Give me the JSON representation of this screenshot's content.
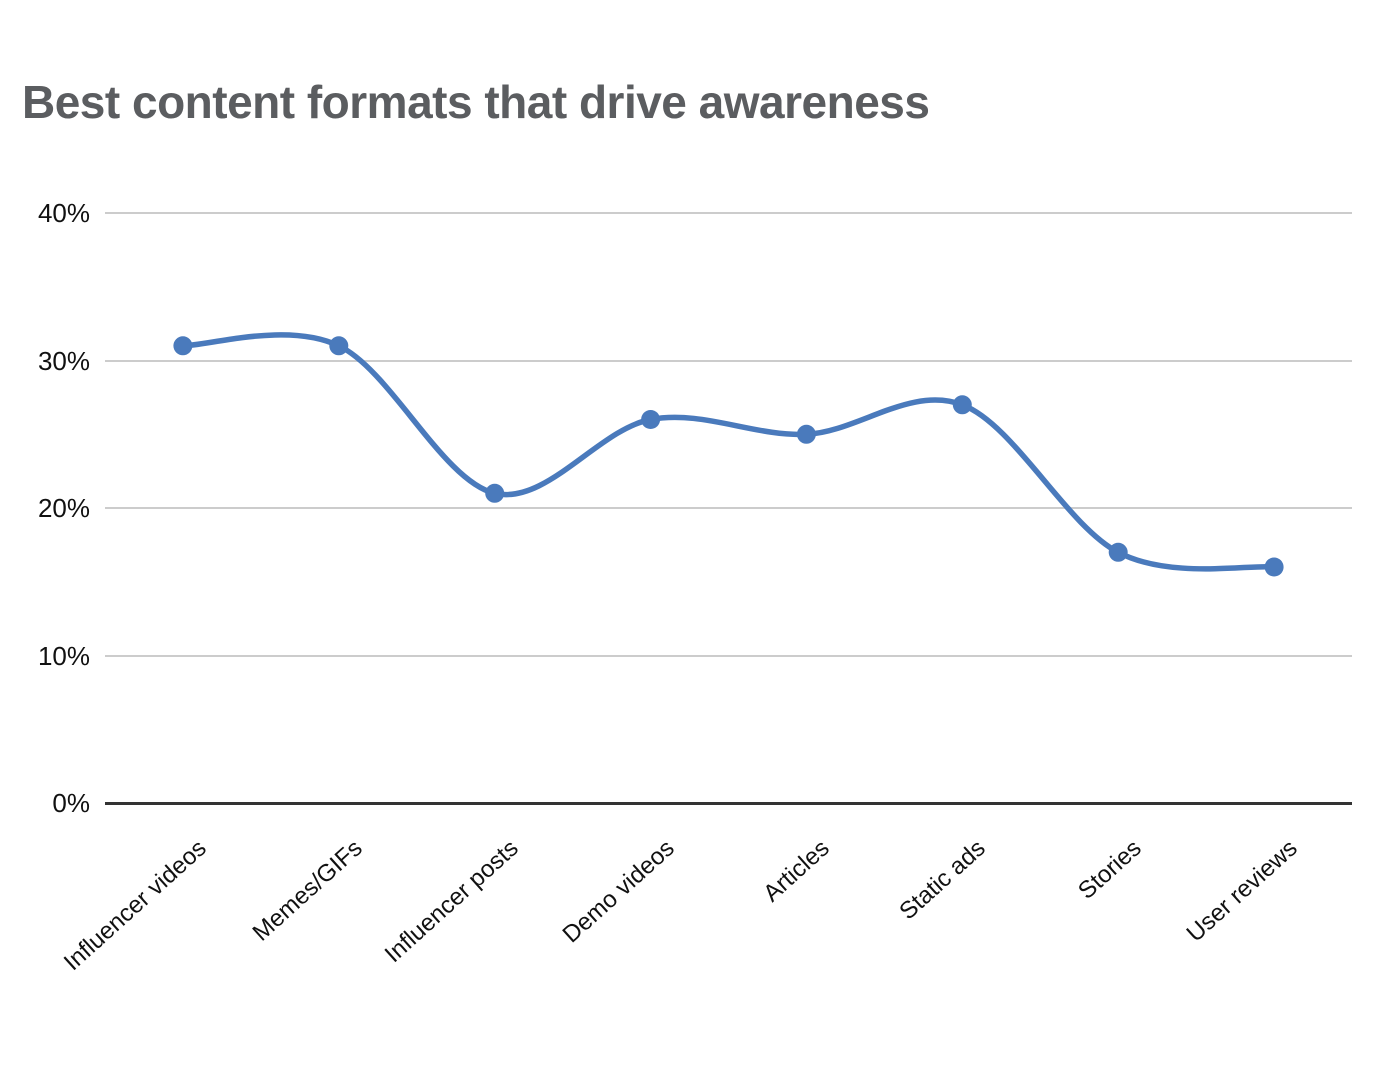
{
  "chart_data": {
    "type": "line",
    "title": "Best content formats that drive awareness",
    "categories": [
      "Influencer videos",
      "Memes/GIFs",
      "Influencer posts",
      "Demo videos",
      "Articles",
      "Static ads",
      "Stories",
      "User reviews"
    ],
    "values": [
      31,
      31,
      21,
      26,
      25,
      27,
      17,
      16
    ],
    "unit": "%",
    "xlabel": "",
    "ylabel": "",
    "ylim": [
      0,
      40
    ],
    "y_tick_labels": [
      "40%",
      "30%",
      "20%",
      "10%",
      "0%"
    ],
    "y_tick_values": [
      40,
      30,
      20,
      10,
      0
    ],
    "grid": true,
    "legend_position": "none",
    "line_color": "#4a7abc",
    "point_color": "#4a7abc",
    "gridline_color": "#cccccc",
    "axis_color": "#333333",
    "tick_label_color": "#111111",
    "title_color": "#5b5d60"
  }
}
